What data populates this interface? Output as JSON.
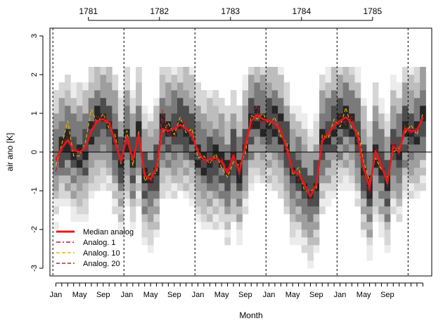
{
  "chart_data": {
    "type": "line",
    "title": "",
    "xlabel": "Month",
    "ylabel": "air ano [K]",
    "ylim": [
      -3.2,
      3.2
    ],
    "yticks": [
      -3,
      -2,
      -1,
      0,
      1,
      2,
      3
    ],
    "x_month_ticks": [
      "Jan",
      "May",
      "Sep",
      "Jan",
      "May",
      "Sep",
      "Jan",
      "May",
      "Sep",
      "Jan",
      "May",
      "Sep",
      "Jan",
      "May",
      "Sep"
    ],
    "top_year_ticks": [
      "1781",
      "1782",
      "1783",
      "1784",
      "1785"
    ],
    "grid": false,
    "zero_line": true,
    "legend_position": "bottom-left",
    "background_shading": "grayscale density of analog ensemble per month",
    "colors": {
      "median": "#e31a1c",
      "analog1": "#c0102a",
      "analog10": "#f0b400",
      "analog20": "#a0302a",
      "year_separator": "#000000"
    },
    "series": [
      {
        "name": "Median analog",
        "style": "solid",
        "values": [
          -0.2,
          0.1,
          0.3,
          0.05,
          0.0,
          0.1,
          0.55,
          0.8,
          0.85,
          0.75,
          0.3,
          -0.25,
          0.4,
          -0.2,
          0.45,
          -0.6,
          -0.7,
          -0.4,
          0.6,
          0.55,
          0.6,
          0.7,
          0.6,
          0.45,
          0.0,
          -0.2,
          -0.2,
          -0.15,
          -0.25,
          -0.55,
          -0.1,
          -0.5,
          0.15,
          0.8,
          0.95,
          0.85,
          0.8,
          0.75,
          0.55,
          0.1,
          -0.5,
          -0.55,
          -0.85,
          -1.15,
          -0.85,
          0.3,
          0.45,
          0.7,
          0.8,
          0.9,
          0.75,
          0.4,
          -0.4,
          -0.9,
          0.0,
          -0.35,
          -0.8,
          0.15,
          0.0,
          0.6,
          0.55,
          0.55,
          0.9
        ]
      },
      {
        "name": "Analog. 1",
        "style": "dashdot",
        "values": [
          -0.5,
          0.15,
          0.4,
          -0.05,
          0.1,
          0.05,
          0.6,
          0.95,
          0.75,
          0.9,
          0.1,
          -0.1,
          0.25,
          -0.05,
          0.3,
          -0.55,
          -0.9,
          -0.3,
          0.85,
          0.4,
          0.7,
          0.55,
          0.8,
          0.3,
          0.05,
          -0.35,
          -0.1,
          -0.3,
          -0.2,
          -0.45,
          0.05,
          -0.65,
          0.35,
          0.6,
          1.05,
          0.65,
          0.9,
          0.6,
          0.75,
          -0.1,
          -0.3,
          -0.75,
          -0.7,
          -1.25,
          -0.7,
          0.2,
          0.65,
          0.55,
          0.95,
          0.7,
          0.95,
          0.2,
          -0.55,
          -1.1,
          0.15,
          -0.2,
          -0.9,
          0.3,
          -0.1,
          0.65,
          0.45,
          0.65,
          0.8
        ]
      },
      {
        "name": "Analog. 10",
        "style": "dashed",
        "values": [
          -0.35,
          0.2,
          0.8,
          -0.1,
          -0.1,
          0.25,
          1.1,
          0.75,
          1.0,
          0.6,
          0.45,
          -0.3,
          0.55,
          -0.35,
          0.55,
          -0.75,
          -0.55,
          -0.55,
          0.5,
          0.75,
          0.45,
          0.9,
          0.5,
          0.6,
          -0.15,
          -0.1,
          -0.3,
          -0.05,
          -0.4,
          -0.65,
          -0.25,
          -0.35,
          -0.05,
          0.95,
          0.85,
          1.0,
          0.7,
          0.9,
          0.4,
          0.25,
          -0.6,
          -0.4,
          -1.0,
          -1.0,
          -0.95,
          0.45,
          0.35,
          0.85,
          0.65,
          1.15,
          0.6,
          0.55,
          -0.25,
          -0.75,
          -0.15,
          -0.45,
          -0.65,
          0.0,
          0.1,
          0.5,
          0.7,
          0.45,
          1.0
        ]
      },
      {
        "name": "Analog. 20",
        "style": "dashed",
        "values": [
          -0.25,
          0.0,
          0.35,
          0.15,
          -0.05,
          0.2,
          0.5,
          0.7,
          0.95,
          0.85,
          0.2,
          -0.15,
          0.3,
          -0.25,
          0.5,
          -0.5,
          -0.75,
          -0.45,
          1.1,
          0.45,
          0.35,
          0.8,
          0.7,
          0.35,
          0.1,
          -0.25,
          -0.25,
          -0.2,
          -0.15,
          -0.5,
          -0.05,
          -0.6,
          0.25,
          0.9,
          1.2,
          0.8,
          0.85,
          0.8,
          0.5,
          0.05,
          -0.45,
          -0.65,
          -0.8,
          -1.05,
          -0.8,
          0.35,
          0.5,
          0.65,
          0.75,
          0.8,
          0.85,
          0.45,
          -0.45,
          -1.0,
          0.05,
          -0.3,
          -0.7,
          0.25,
          0.05,
          0.7,
          0.5,
          0.6,
          0.85
        ]
      }
    ],
    "legend": [
      "Median analog",
      "Analog. 1",
      "Analog. 10",
      "Analog. 20"
    ]
  }
}
